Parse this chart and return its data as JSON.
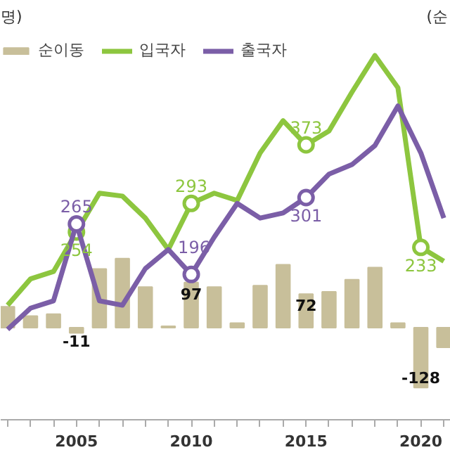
{
  "chart_data": {
    "type": "bar",
    "ylabel": "명)",
    "y2label": "(순",
    "x": [
      2002,
      2003,
      2004,
      2005,
      2006,
      2007,
      2008,
      2009,
      2010,
      2011,
      2012,
      2013,
      2014,
      2015,
      2016,
      2017,
      2018,
      2019,
      2020,
      2021
    ],
    "xlim": [
      2001.7,
      2021.3
    ],
    "xticks": [
      2005,
      2010,
      2015,
      2020
    ],
    "tick_labels": "x",
    "legend": "top left",
    "grid": false,
    "series": [
      {
        "name": "순이동",
        "axis": "y2",
        "color": "#c8bf9a",
        "values": [
          45,
          25,
          29,
          -11,
          126,
          148,
          87,
          3,
          97,
          87,
          10,
          90,
          135,
          72,
          77,
          103,
          129,
          10,
          -128,
          -42
        ],
        "value_labels": [
          null,
          null,
          null,
          "-11",
          null,
          null,
          null,
          null,
          "97",
          null,
          null,
          null,
          null,
          "72",
          null,
          null,
          null,
          null,
          "-128",
          null
        ]
      },
      {
        "name": "입국자",
        "type": "line",
        "color": "#8dc63f",
        "values": [
          154,
          190,
          200,
          254,
          307,
          303,
          273,
          230,
          293,
          307,
          297,
          362,
          406,
          373,
          392,
          445,
          495,
          451,
          233,
          214
        ],
        "value_labels": [
          null,
          null,
          null,
          "254",
          null,
          null,
          null,
          null,
          "293",
          null,
          null,
          null,
          null,
          "373",
          null,
          null,
          null,
          null,
          "233",
          null
        ]
      },
      {
        "name": "출국자",
        "type": "line",
        "color": "#7b5ea7",
        "values": [
          121,
          150,
          160,
          265,
          160,
          154,
          204,
          230,
          196,
          247,
          293,
          273,
          280,
          301,
          333,
          346,
          372,
          426,
          362,
          273
        ],
        "value_labels": [
          null,
          null,
          null,
          "265",
          null,
          null,
          null,
          null,
          "196",
          null,
          null,
          null,
          null,
          "301",
          null,
          null,
          null,
          null,
          null,
          null
        ]
      }
    ]
  }
}
